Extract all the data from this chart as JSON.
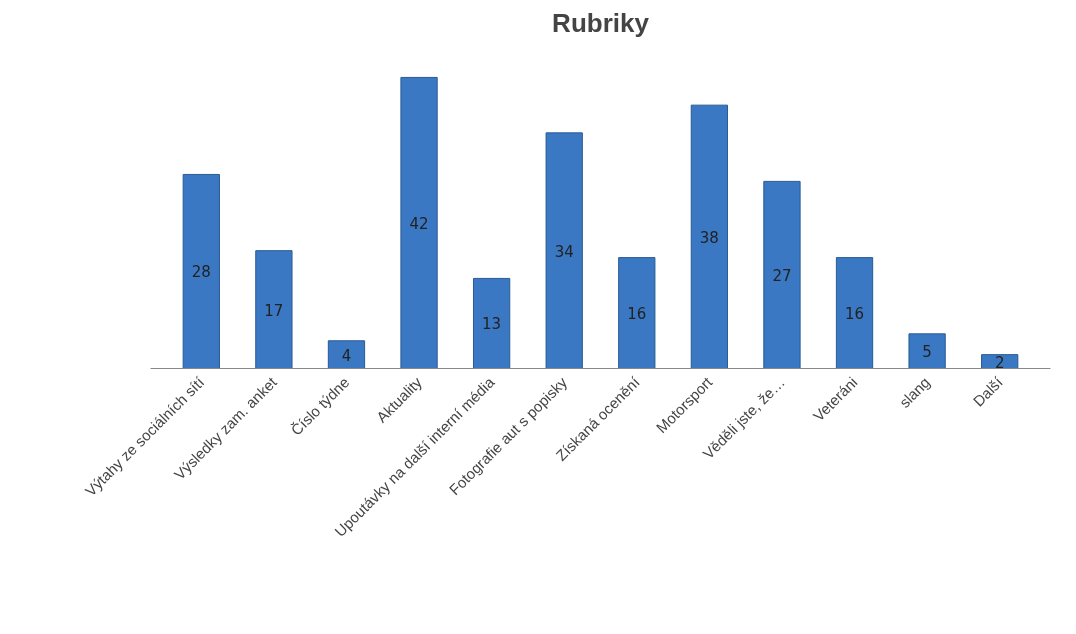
{
  "chart_data": {
    "type": "bar",
    "title": "Rubriky",
    "categories": [
      "Výtahy ze sociálních sítí",
      "Výsledky zam. anket",
      "Číslo týdne",
      "Aktuality",
      "Upoutávky na další interní média",
      "Fotografie aut s popisky",
      "Získaná ocenění",
      "Motorsport",
      "Věděli jste, že…",
      "Veteráni",
      "slang",
      "Další"
    ],
    "values": [
      28,
      17,
      4,
      42,
      13,
      34,
      16,
      38,
      27,
      16,
      5,
      2
    ],
    "color": "#3a78c4",
    "data_labels": true,
    "grid": false
  }
}
